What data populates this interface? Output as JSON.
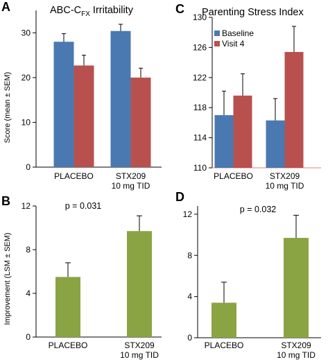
{
  "colors": {
    "baseline": "#4a79b2",
    "visit4": "#b8514e",
    "improvement": "#8aa443",
    "axis_line": "#e79a9a"
  },
  "chart_data": [
    {
      "panel": "A",
      "title": "ABC-C",
      "title_subscript": "FX",
      "title_suffix": " Irritability",
      "type": "bar",
      "ylabel": "Score (mean ± SEM)",
      "ylim": [
        0,
        35
      ],
      "yticks": [
        0,
        10,
        20,
        30
      ],
      "categories": [
        "PLACEBO",
        "STX209\n10 mg TID"
      ],
      "series": [
        {
          "name": "Baseline",
          "color": "baseline",
          "values": [
            28.0,
            30.4
          ],
          "errors": [
            1.8,
            1.5
          ]
        },
        {
          "name": "Visit 4",
          "color": "visit4",
          "values": [
            22.7,
            20.0
          ],
          "errors": [
            2.3,
            2.1
          ]
        }
      ]
    },
    {
      "panel": "C",
      "title": "Parenting Stress Index",
      "type": "bar",
      "ylabel": "",
      "ylim": [
        110,
        130
      ],
      "yticks": [
        110,
        114,
        118,
        122,
        126,
        130
      ],
      "categories": [
        "PLACEBO",
        "STX209\n10 mg TID"
      ],
      "legend_position": "top-left",
      "series": [
        {
          "name": "Baseline",
          "color": "baseline",
          "values": [
            117.0,
            116.3
          ],
          "errors": [
            3.2,
            2.9
          ]
        },
        {
          "name": "Visit 4",
          "color": "visit4",
          "values": [
            119.6,
            125.4
          ],
          "errors": [
            2.9,
            3.4
          ]
        }
      ]
    },
    {
      "panel": "B",
      "title": "",
      "type": "bar",
      "ylabel": "Improvement (LSM ± SEM)",
      "ylim": [
        0,
        12
      ],
      "yticks": [
        0,
        4,
        8,
        12
      ],
      "annotation": "p = 0.031",
      "categories": [
        "PLACEBO",
        "STX209\n10 mg TID"
      ],
      "series": [
        {
          "color": "improvement",
          "values": [
            5.5,
            9.7
          ],
          "errors": [
            1.3,
            1.4
          ]
        }
      ]
    },
    {
      "panel": "D",
      "title": "",
      "type": "bar",
      "ylabel": "",
      "ylim": [
        0,
        12.8
      ],
      "yticks": [
        0,
        4,
        8,
        12
      ],
      "annotation": "p = 0.032",
      "categories": [
        "PLACEBO",
        "STX209\n10 mg TID"
      ],
      "series": [
        {
          "color": "improvement",
          "values": [
            3.4,
            9.7
          ],
          "errors": [
            2.0,
            2.2
          ]
        }
      ]
    }
  ]
}
